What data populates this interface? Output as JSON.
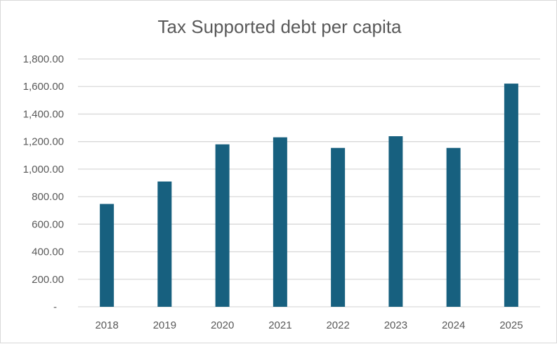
{
  "chart_data": {
    "type": "bar",
    "title": "Tax Supported debt per capita",
    "categories": [
      "2018",
      "2019",
      "2020",
      "2021",
      "2022",
      "2023",
      "2024",
      "2025"
    ],
    "values": [
      747,
      910,
      1180,
      1231,
      1154,
      1239,
      1154,
      1621
    ],
    "ylim": [
      0,
      1800
    ],
    "yticks": [
      "-",
      "200.00",
      "400.00",
      "600.00",
      "800.00",
      "1,000.00",
      "1,200.00",
      "1,400.00",
      "1,600.00",
      "1,800.00"
    ],
    "grid": true,
    "bar_color": "#17607f",
    "xlabel": "",
    "ylabel": ""
  }
}
